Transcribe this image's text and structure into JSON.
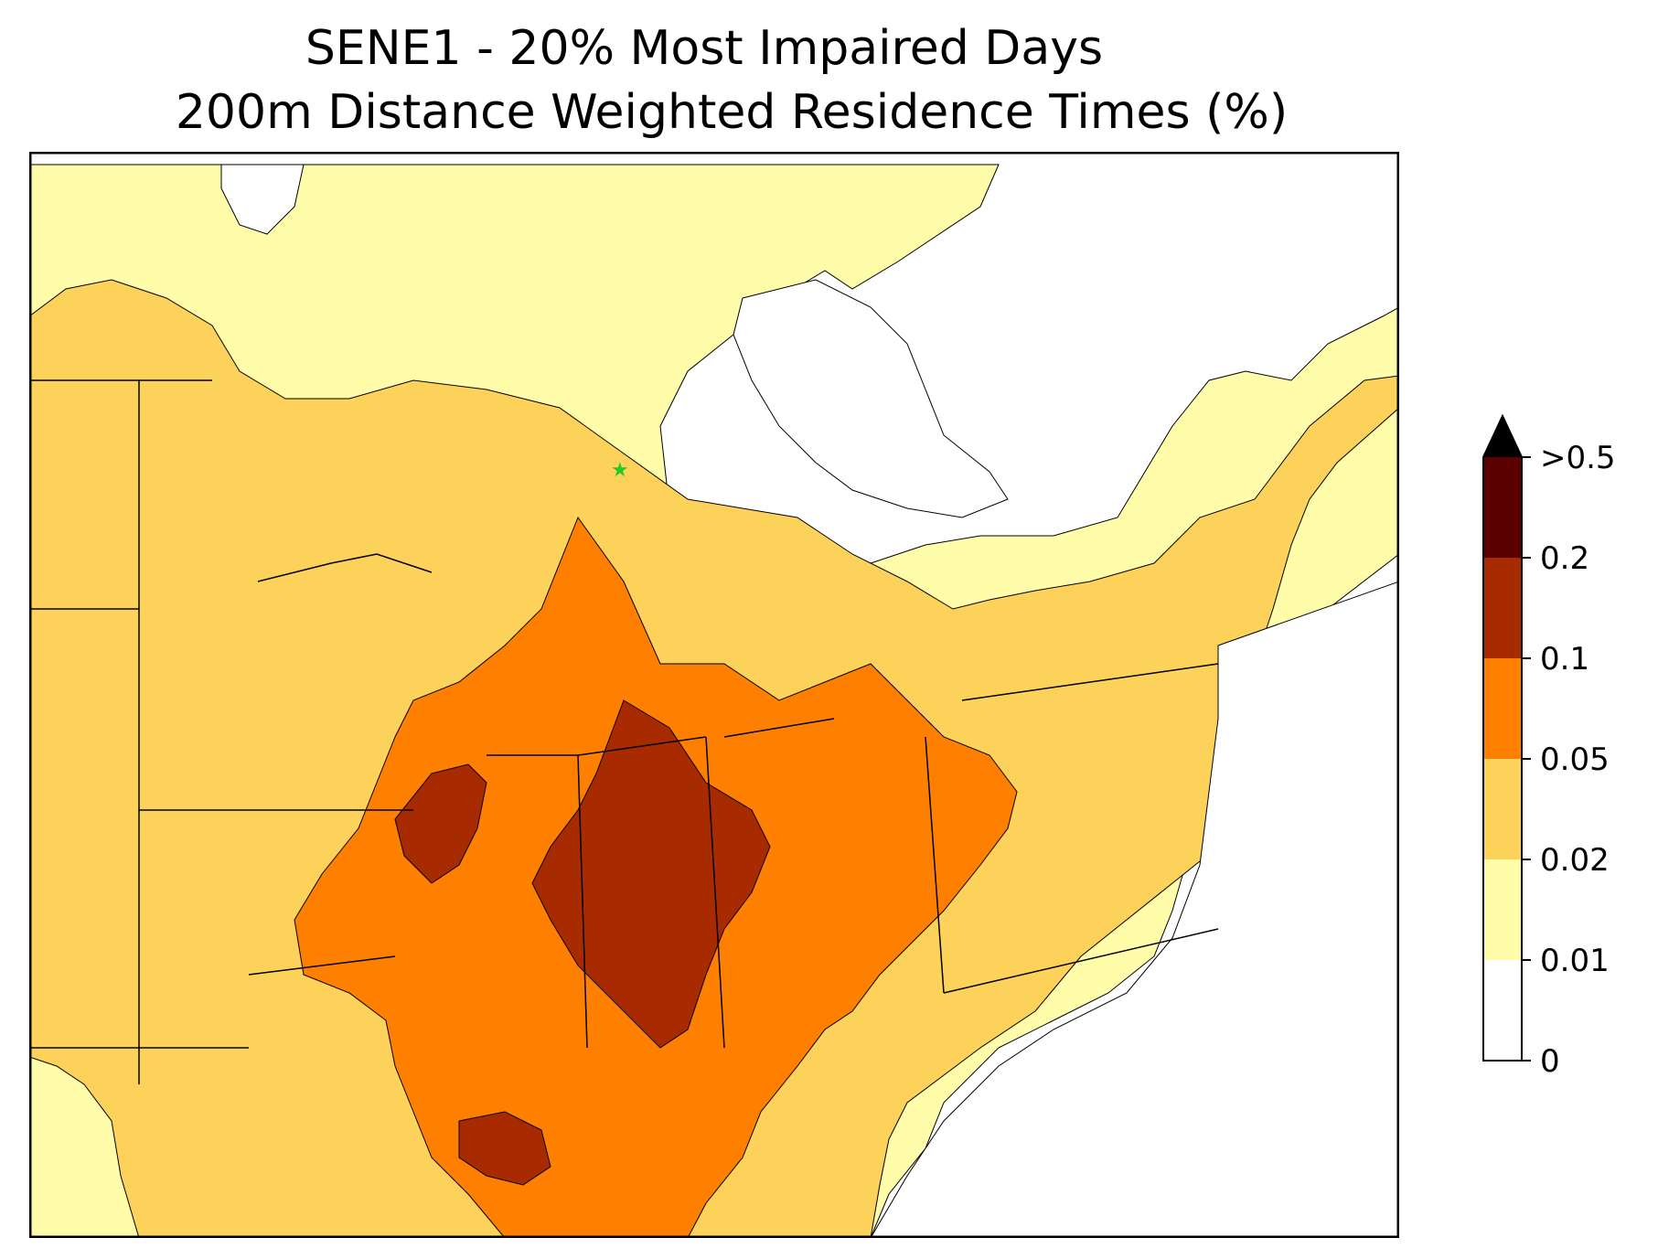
{
  "title": {
    "line1": "SENE1 - 20% Most Impaired Days",
    "line2": "200m Distance Weighted Residence Times (%)"
  },
  "map": {
    "receptor_marker": "green-star",
    "receptor_color": "#22cc22",
    "regions": [
      {
        "name": "northwest-canada",
        "level": "0.01-0.02"
      },
      {
        "name": "hudson-bay-area",
        "level": "0-0.01"
      },
      {
        "name": "northern-plains",
        "level": "0.02-0.05"
      },
      {
        "name": "upper-midwest",
        "level": "0.05-0.1"
      },
      {
        "name": "illinois-indiana-core",
        "level": "0.1-0.2"
      },
      {
        "name": "appalachians-east",
        "level": "0-0.01"
      }
    ]
  },
  "colorbar": {
    "extend_arrow": "max",
    "bins": [
      {
        "color": "#ffffff",
        "range": "0-0.01"
      },
      {
        "color": "#fffcaa",
        "range": "0.01-0.02"
      },
      {
        "color": "#fdd25a",
        "range": "0.02-0.05"
      },
      {
        "color": "#ff8000",
        "range": "0.05-0.1"
      },
      {
        "color": "#a82a00",
        "range": "0.1-0.2"
      },
      {
        "color": "#5a0000",
        "range": "0.2-0.5"
      },
      {
        "color": "#000000",
        "range": ">0.5"
      }
    ],
    "tick_labels": [
      "0",
      "0.01",
      "0.02",
      "0.05",
      "0.1",
      "0.2",
      ">0.5"
    ]
  }
}
